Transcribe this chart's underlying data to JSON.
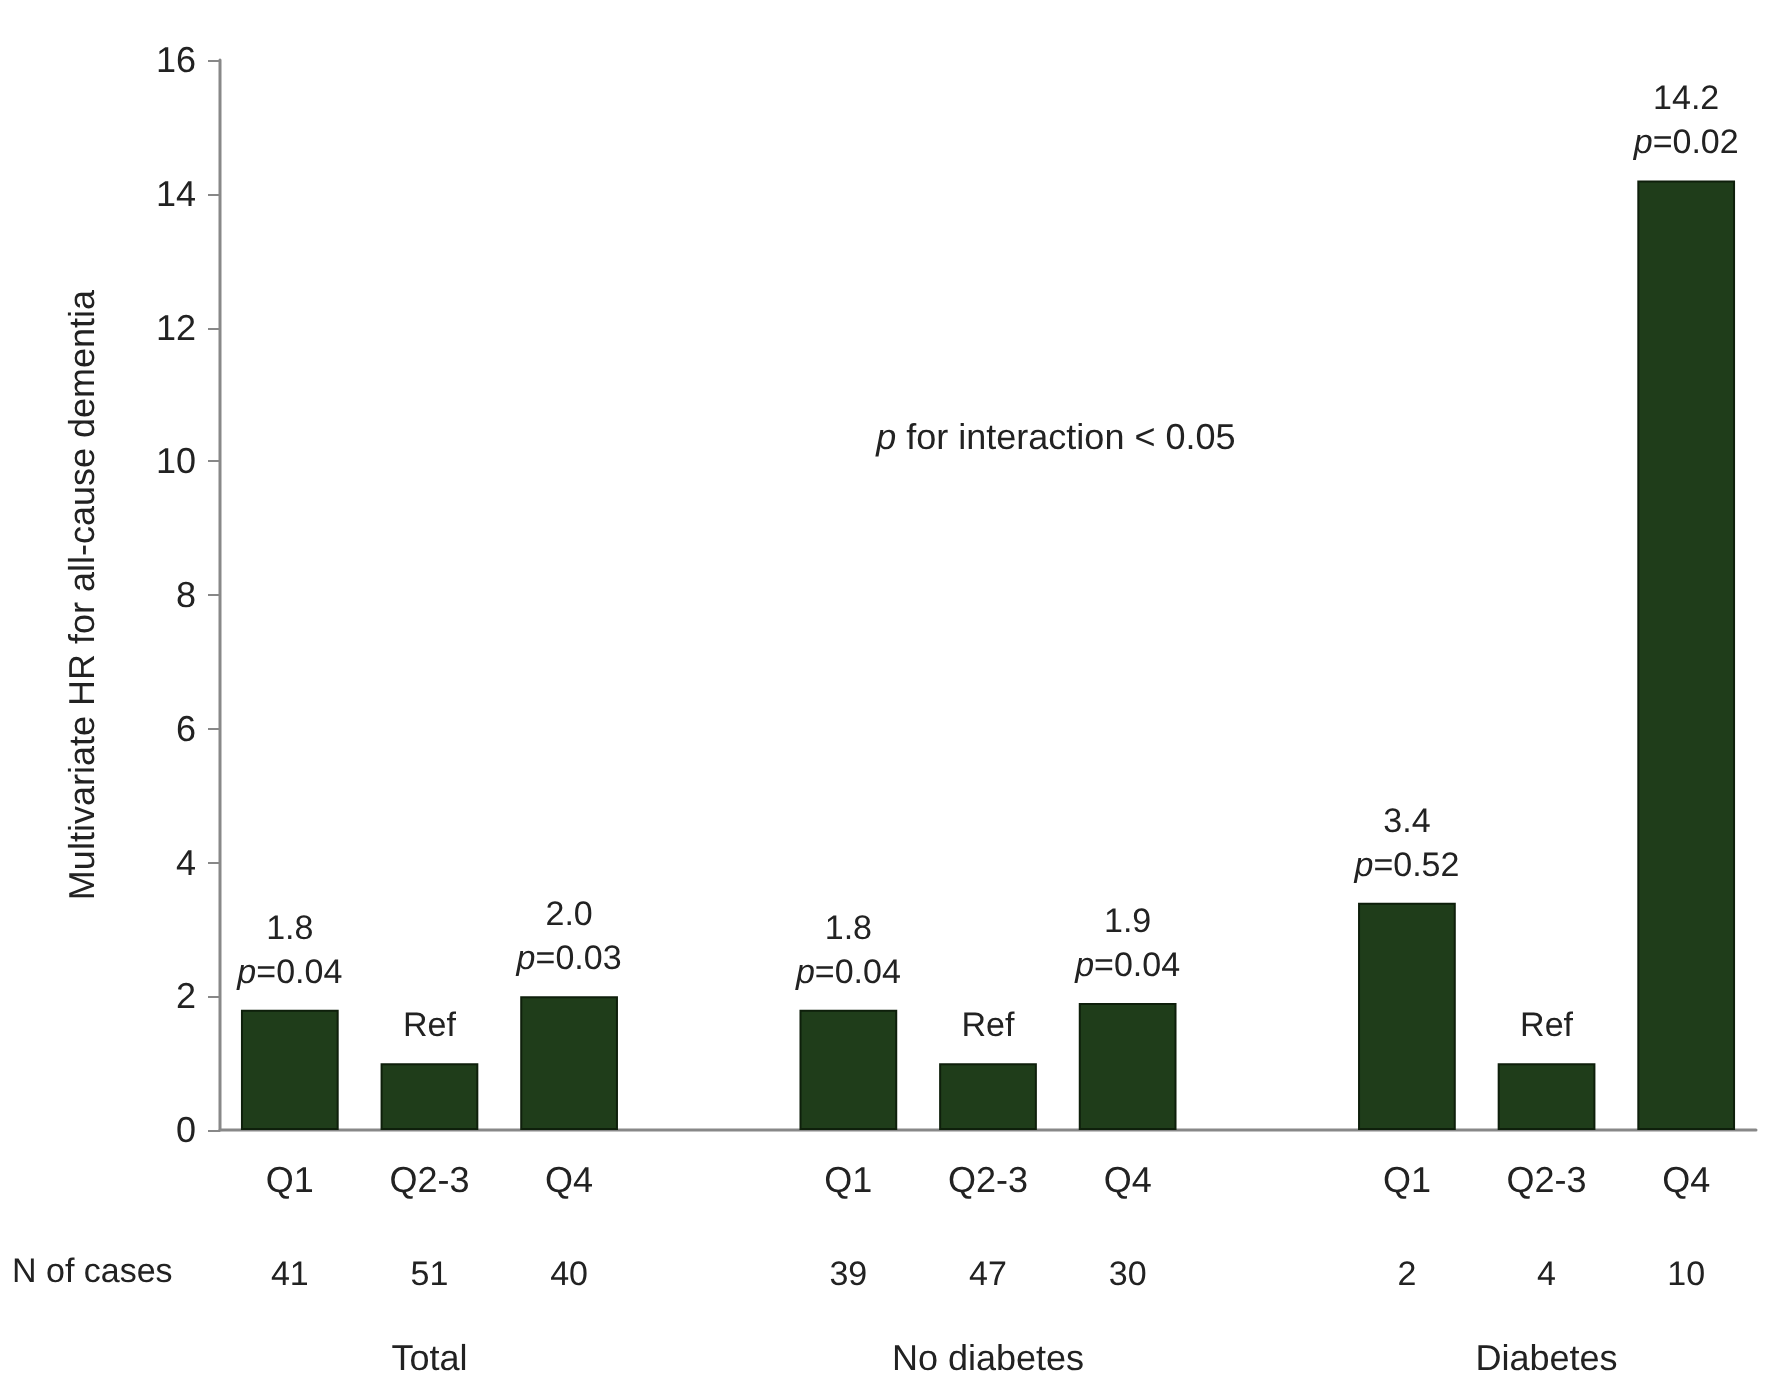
{
  "chart_data": {
    "type": "bar",
    "ylabel": "Multivariate HR for all-cause dementia",
    "categories": [
      "Q1",
      "Q2-3",
      "Q4",
      null,
      "Q1",
      "Q2-3",
      "Q4",
      null,
      "Q1",
      "Q2-3",
      "Q4"
    ],
    "values": [
      1.8,
      1.0,
      2.0,
      null,
      1.8,
      1.0,
      1.9,
      null,
      3.4,
      1.0,
      14.2
    ],
    "value_labels": [
      "1.8\np=0.04",
      "Ref",
      "2.0\np=0.03",
      null,
      "1.8\np=0.04",
      "Ref",
      "1.9\np=0.04",
      null,
      "3.4\np=0.52",
      "Ref",
      "14.2\np=0.02"
    ],
    "color": "#1f3d1a",
    "ylim": [
      0,
      16
    ],
    "yticks": [
      0,
      2,
      4,
      6,
      8,
      10,
      12,
      14,
      16
    ],
    "grid": false,
    "annotations": [
      "p for interaction < 0.05",
      "N of cases",
      "41",
      "51",
      "40",
      "39",
      "47",
      "30",
      "2",
      "4",
      "10",
      "Total",
      "No diabetes",
      "Diabetes"
    ]
  }
}
